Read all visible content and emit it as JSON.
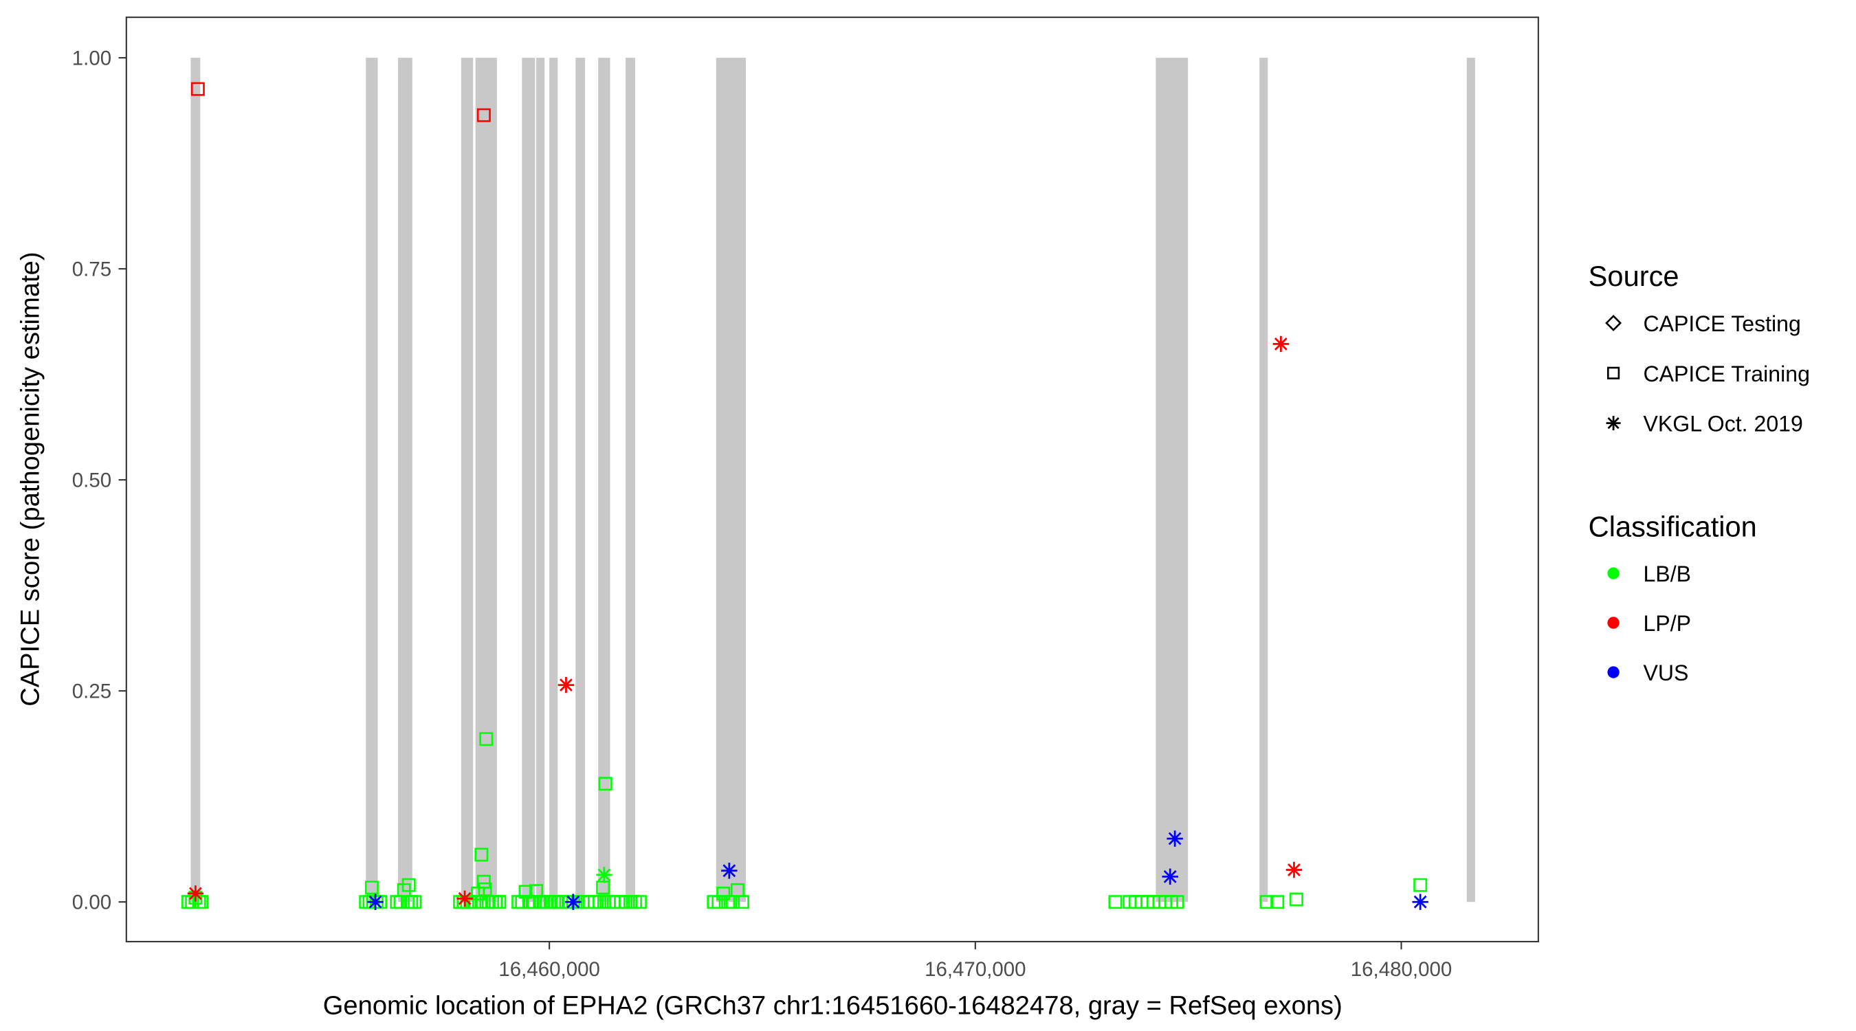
{
  "chart_data": {
    "type": "scatter",
    "xlabel": "Genomic location of EPHA2 (GRCh37 chr1:16451660-16482478, gray = RefSeq exons)",
    "ylabel": "CAPICE score (pathogenicity estimate)",
    "xlim": [
      16450070,
      16483217
    ],
    "ylim": [
      -0.047,
      1.048
    ],
    "x_ticks": [
      16460000,
      16470000,
      16480000
    ],
    "x_tick_labels": [
      "16,460,000",
      "16,470,000",
      "16,480,000"
    ],
    "y_ticks": [
      0,
      0.25,
      0.5,
      0.75,
      1.0
    ],
    "y_tick_labels": [
      "0.00",
      "0.25",
      "0.50",
      "0.75",
      "1.00"
    ],
    "grid": false,
    "exon_color": "#C8C8C8",
    "exons": [
      [
        16451581,
        16451805
      ],
      [
        16455693,
        16455972
      ],
      [
        16456448,
        16456783
      ],
      [
        16457930,
        16458210
      ],
      [
        16458266,
        16458769
      ],
      [
        16459357,
        16459664
      ],
      [
        16459692,
        16459888
      ],
      [
        16460000,
        16460196
      ],
      [
        16460615,
        16460839
      ],
      [
        16461147,
        16461426
      ],
      [
        16461790,
        16462014
      ],
      [
        16463916,
        16464615
      ],
      [
        16474237,
        16474992
      ],
      [
        16476670,
        16476866
      ],
      [
        16481537,
        16481733
      ]
    ],
    "legend": {
      "placement": "right",
      "source_title": "Source",
      "source_items": [
        {
          "label": "CAPICE Testing",
          "shape": "diamond"
        },
        {
          "label": "CAPICE Training",
          "shape": "square"
        },
        {
          "label": "VKGL Oct. 2019",
          "shape": "asterisk"
        }
      ],
      "class_title": "Classification",
      "class_items": [
        {
          "label": "LB/B",
          "color": "#00FF00"
        },
        {
          "label": "LP/P",
          "color": "#FF0000"
        },
        {
          "label": "VUS",
          "color": "#0000FF"
        }
      ]
    },
    "point_columns": [
      "position",
      "score",
      "source",
      "classification"
    ],
    "points": [
      [
        16451525,
        0,
        "CAPICE Training",
        "LB/B"
      ],
      [
        16451609,
        0,
        "CAPICE Training",
        "LB/B"
      ],
      [
        16451693,
        0.005,
        "CAPICE Training",
        "LB/B"
      ],
      [
        16451776,
        0,
        "CAPICE Training",
        "LB/B"
      ],
      [
        16451832,
        0,
        "CAPICE Training",
        "LB/B"
      ],
      [
        16455693,
        0,
        "CAPICE Training",
        "LB/B"
      ],
      [
        16455777,
        0,
        "CAPICE Training",
        "LB/B"
      ],
      [
        16455832,
        0.017,
        "CAPICE Training",
        "LB/B"
      ],
      [
        16455861,
        0,
        "CAPICE Training",
        "LB/B"
      ],
      [
        16455944,
        0,
        "CAPICE Training",
        "LB/B"
      ],
      [
        16456028,
        0,
        "CAPICE Training",
        "LB/B"
      ],
      [
        16456420,
        0,
        "CAPICE Training",
        "LB/B"
      ],
      [
        16456504,
        0,
        "CAPICE Training",
        "LB/B"
      ],
      [
        16456588,
        0.014,
        "CAPICE Training",
        "LB/B"
      ],
      [
        16456672,
        0,
        "CAPICE Training",
        "LB/B"
      ],
      [
        16456700,
        0.02,
        "CAPICE Training",
        "LB/B"
      ],
      [
        16456756,
        0,
        "CAPICE Training",
        "LB/B"
      ],
      [
        16456839,
        0,
        "CAPICE Training",
        "LB/B"
      ],
      [
        16457902,
        0,
        "CAPICE Training",
        "LB/B"
      ],
      [
        16457986,
        0,
        "CAPICE Training",
        "LB/B"
      ],
      [
        16458070,
        0,
        "CAPICE Training",
        "LB/B"
      ],
      [
        16458154,
        0,
        "CAPICE Training",
        "LB/B"
      ],
      [
        16458238,
        0,
        "CAPICE Training",
        "LB/B"
      ],
      [
        16458322,
        0.01,
        "CAPICE Training",
        "LB/B"
      ],
      [
        16458406,
        0,
        "CAPICE Training",
        "LB/B"
      ],
      [
        16458490,
        0.015,
        "CAPICE Training",
        "LB/B"
      ],
      [
        16458573,
        0,
        "CAPICE Training",
        "LB/B"
      ],
      [
        16458657,
        0,
        "CAPICE Training",
        "LB/B"
      ],
      [
        16458741,
        0,
        "CAPICE Training",
        "LB/B"
      ],
      [
        16458825,
        0,
        "CAPICE Training",
        "LB/B"
      ],
      [
        16458406,
        0.056,
        "CAPICE Training",
        "LB/B"
      ],
      [
        16458462,
        0.024,
        "CAPICE Training",
        "LB/B"
      ],
      [
        16458518,
        0.193,
        "CAPICE Training",
        "LB/B"
      ],
      [
        16459273,
        0,
        "CAPICE Training",
        "LB/B"
      ],
      [
        16459357,
        0,
        "CAPICE Training",
        "LB/B"
      ],
      [
        16459441,
        0.012,
        "CAPICE Training",
        "LB/B"
      ],
      [
        16459525,
        0,
        "CAPICE Training",
        "LB/B"
      ],
      [
        16459608,
        0,
        "CAPICE Training",
        "LB/B"
      ],
      [
        16459692,
        0.013,
        "CAPICE Training",
        "LB/B"
      ],
      [
        16459776,
        0,
        "CAPICE Training",
        "LB/B"
      ],
      [
        16459860,
        0,
        "CAPICE Training",
        "LB/B"
      ],
      [
        16459944,
        0,
        "CAPICE Training",
        "LB/B"
      ],
      [
        16460028,
        0,
        "CAPICE Training",
        "LB/B"
      ],
      [
        16460112,
        0,
        "CAPICE Training",
        "LB/B"
      ],
      [
        16460196,
        0,
        "CAPICE Training",
        "LB/B"
      ],
      [
        16460280,
        0,
        "CAPICE Training",
        "LB/B"
      ],
      [
        16460448,
        0,
        "CAPICE Training",
        "LB/B"
      ],
      [
        16460559,
        0,
        "CAPICE Training",
        "LB/B"
      ],
      [
        16460671,
        0,
        "CAPICE Training",
        "LB/B"
      ],
      [
        16460783,
        0,
        "CAPICE Training",
        "LB/B"
      ],
      [
        16460895,
        0,
        "CAPICE Training",
        "LB/B"
      ],
      [
        16461063,
        0,
        "CAPICE Training",
        "LB/B"
      ],
      [
        16461175,
        0,
        "CAPICE Training",
        "LB/B"
      ],
      [
        16461259,
        0.017,
        "CAPICE Training",
        "LB/B"
      ],
      [
        16461287,
        0,
        "CAPICE Training",
        "LB/B"
      ],
      [
        16461398,
        0,
        "CAPICE Training",
        "LB/B"
      ],
      [
        16461510,
        0,
        "CAPICE Training",
        "LB/B"
      ],
      [
        16461315,
        0.14,
        "CAPICE Training",
        "LB/B"
      ],
      [
        16461678,
        0,
        "CAPICE Training",
        "LB/B"
      ],
      [
        16461790,
        0,
        "CAPICE Training",
        "LB/B"
      ],
      [
        16461902,
        0,
        "CAPICE Training",
        "LB/B"
      ],
      [
        16462014,
        0,
        "CAPICE Training",
        "LB/B"
      ],
      [
        16462126,
        0,
        "CAPICE Training",
        "LB/B"
      ],
      [
        16463860,
        0,
        "CAPICE Training",
        "LB/B"
      ],
      [
        16463972,
        0,
        "CAPICE Training",
        "LB/B"
      ],
      [
        16464084,
        0.01,
        "CAPICE Training",
        "LB/B"
      ],
      [
        16464196,
        0,
        "CAPICE Training",
        "LB/B"
      ],
      [
        16464307,
        0,
        "CAPICE Training",
        "LB/B"
      ],
      [
        16464419,
        0.014,
        "CAPICE Training",
        "LB/B"
      ],
      [
        16464531,
        0,
        "CAPICE Training",
        "LB/B"
      ],
      [
        16473286,
        0,
        "CAPICE Training",
        "LB/B"
      ],
      [
        16473621,
        0,
        "CAPICE Training",
        "LB/B"
      ],
      [
        16473761,
        0,
        "CAPICE Training",
        "LB/B"
      ],
      [
        16473901,
        0,
        "CAPICE Training",
        "LB/B"
      ],
      [
        16474041,
        0,
        "CAPICE Training",
        "LB/B"
      ],
      [
        16474181,
        0,
        "CAPICE Training",
        "LB/B"
      ],
      [
        16474321,
        0,
        "CAPICE Training",
        "LB/B"
      ],
      [
        16474460,
        0,
        "CAPICE Training",
        "LB/B"
      ],
      [
        16474600,
        0,
        "CAPICE Training",
        "LB/B"
      ],
      [
        16474740,
        0,
        "CAPICE Training",
        "LB/B"
      ],
      [
        16476838,
        0,
        "CAPICE Training",
        "LB/B"
      ],
      [
        16477090,
        0,
        "CAPICE Training",
        "LB/B"
      ],
      [
        16477537,
        0.003,
        "CAPICE Training",
        "LB/B"
      ],
      [
        16480446,
        0.02,
        "CAPICE Training",
        "LB/B"
      ],
      [
        16451749,
        0.963,
        "CAPICE Training",
        "LP/P"
      ],
      [
        16458462,
        0.932,
        "CAPICE Training",
        "LP/P"
      ],
      [
        16461287,
        0.032,
        "VKGL Oct. 2019",
        "LB/B"
      ],
      [
        16451693,
        0.01,
        "VKGL Oct. 2019",
        "LP/P"
      ],
      [
        16458014,
        0.004,
        "VKGL Oct. 2019",
        "LP/P"
      ],
      [
        16460392,
        0.257,
        "VKGL Oct. 2019",
        "LP/P"
      ],
      [
        16477174,
        0.661,
        "VKGL Oct. 2019",
        "LP/P"
      ],
      [
        16477482,
        0.038,
        "VKGL Oct. 2019",
        "LP/P"
      ],
      [
        16455916,
        0,
        "VKGL Oct. 2019",
        "VUS"
      ],
      [
        16460559,
        0,
        "VKGL Oct. 2019",
        "VUS"
      ],
      [
        16464223,
        0.037,
        "VKGL Oct. 2019",
        "VUS"
      ],
      [
        16474685,
        0.075,
        "VKGL Oct. 2019",
        "VUS"
      ],
      [
        16474573,
        0.03,
        "VKGL Oct. 2019",
        "VUS"
      ],
      [
        16480446,
        0,
        "VKGL Oct. 2019",
        "VUS"
      ]
    ]
  }
}
